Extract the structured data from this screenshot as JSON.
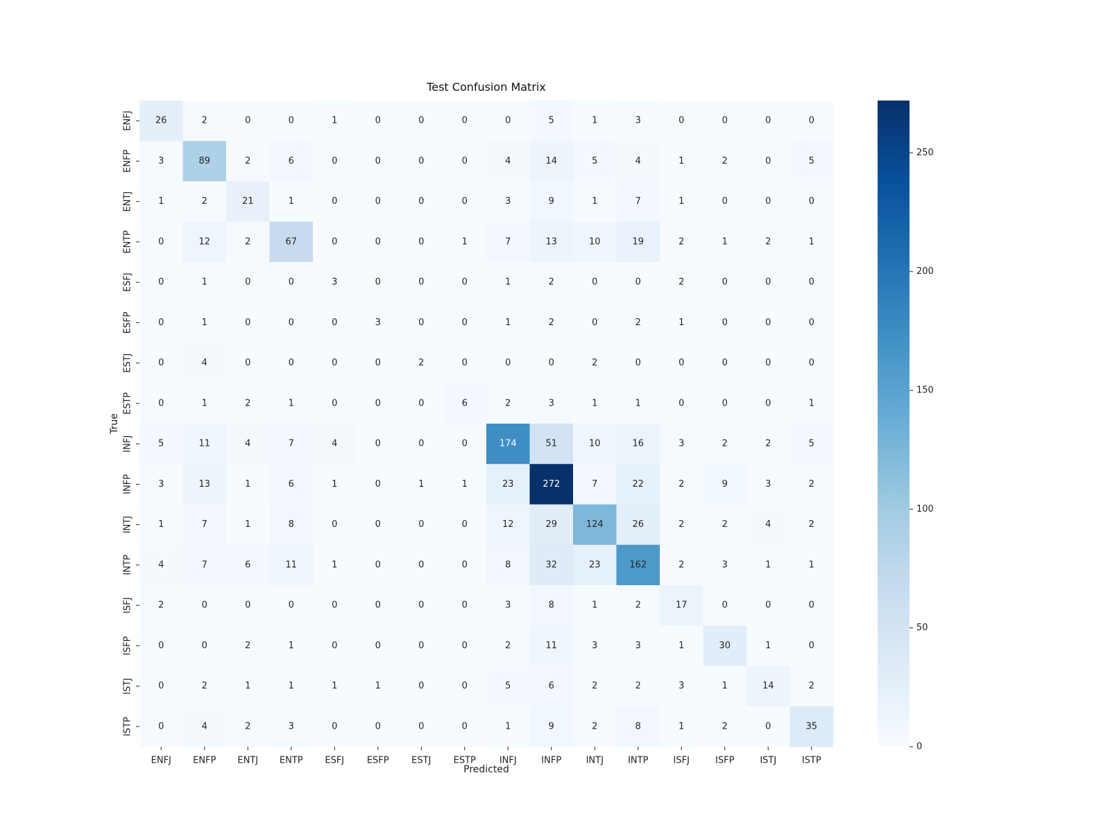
{
  "chart_data": {
    "type": "heatmap",
    "title": "Test Confusion Matrix",
    "xlabel": "Predicted",
    "ylabel": "True",
    "x_categories": [
      "ENFJ",
      "ENFP",
      "ENTJ",
      "ENTP",
      "ESFJ",
      "ESFP",
      "ESTJ",
      "ESTP",
      "INFJ",
      "INFP",
      "INTJ",
      "INTP",
      "ISFJ",
      "ISFP",
      "ISTJ",
      "ISTP"
    ],
    "y_categories": [
      "ENFJ",
      "ENFP",
      "ENTJ",
      "ENTP",
      "ESFJ",
      "ESFP",
      "ESTJ",
      "ESTP",
      "INFJ",
      "INFP",
      "INTJ",
      "INTP",
      "ISFJ",
      "ISFP",
      "ISTJ",
      "ISTP"
    ],
    "values": [
      [
        26,
        2,
        0,
        0,
        1,
        0,
        0,
        0,
        0,
        5,
        1,
        3,
        0,
        0,
        0,
        0
      ],
      [
        3,
        89,
        2,
        6,
        0,
        0,
        0,
        0,
        4,
        14,
        5,
        4,
        1,
        2,
        0,
        5
      ],
      [
        1,
        2,
        21,
        1,
        0,
        0,
        0,
        0,
        3,
        9,
        1,
        7,
        1,
        0,
        0,
        0
      ],
      [
        0,
        12,
        2,
        67,
        0,
        0,
        0,
        1,
        7,
        13,
        10,
        19,
        2,
        1,
        2,
        1
      ],
      [
        0,
        1,
        0,
        0,
        3,
        0,
        0,
        0,
        1,
        2,
        0,
        0,
        2,
        0,
        0,
        0
      ],
      [
        0,
        1,
        0,
        0,
        0,
        3,
        0,
        0,
        1,
        2,
        0,
        2,
        1,
        0,
        0,
        0
      ],
      [
        0,
        4,
        0,
        0,
        0,
        0,
        2,
        0,
        0,
        0,
        2,
        0,
        0,
        0,
        0,
        0
      ],
      [
        0,
        1,
        2,
        1,
        0,
        0,
        0,
        6,
        2,
        3,
        1,
        1,
        0,
        0,
        0,
        1
      ],
      [
        5,
        11,
        4,
        7,
        4,
        0,
        0,
        0,
        174,
        51,
        10,
        16,
        3,
        2,
        2,
        5
      ],
      [
        3,
        13,
        1,
        6,
        1,
        0,
        1,
        1,
        23,
        272,
        7,
        22,
        2,
        9,
        3,
        2
      ],
      [
        1,
        7,
        1,
        8,
        0,
        0,
        0,
        0,
        12,
        29,
        124,
        26,
        2,
        2,
        4,
        2
      ],
      [
        4,
        7,
        6,
        11,
        1,
        0,
        0,
        0,
        8,
        32,
        23,
        162,
        2,
        3,
        1,
        1
      ],
      [
        2,
        0,
        0,
        0,
        0,
        0,
        0,
        0,
        3,
        8,
        1,
        2,
        17,
        0,
        0,
        0
      ],
      [
        0,
        0,
        2,
        1,
        0,
        0,
        0,
        0,
        2,
        11,
        3,
        3,
        1,
        30,
        1,
        0
      ],
      [
        0,
        2,
        1,
        1,
        1,
        1,
        0,
        0,
        5,
        6,
        2,
        2,
        3,
        1,
        14,
        2
      ],
      [
        0,
        4,
        2,
        3,
        0,
        0,
        0,
        0,
        1,
        9,
        2,
        8,
        1,
        2,
        0,
        35
      ]
    ],
    "colorbar": {
      "colormap": "Blues",
      "min": 0,
      "max": 272,
      "ticks": [
        0,
        50,
        100,
        150,
        200,
        250
      ]
    }
  }
}
